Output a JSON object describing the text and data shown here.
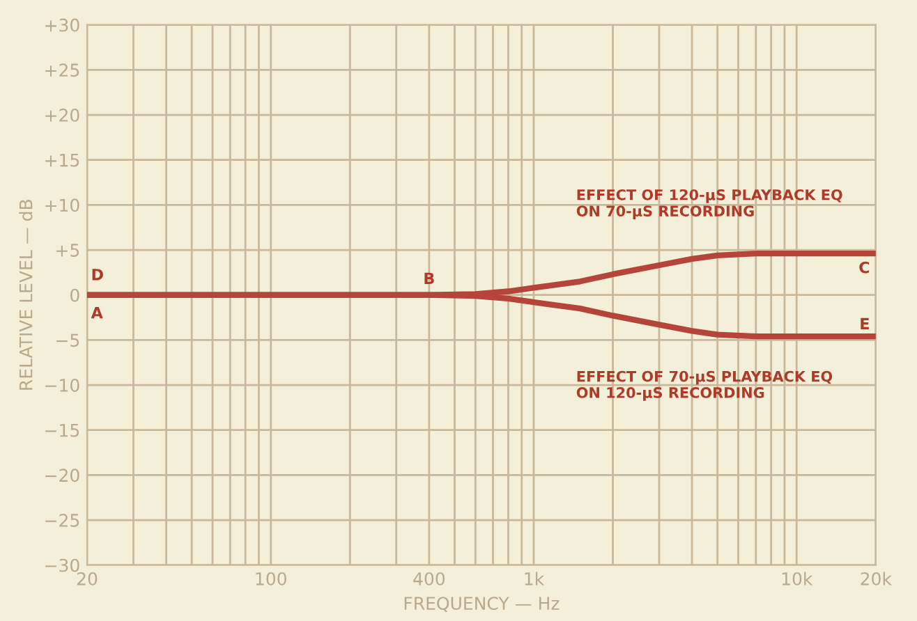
{
  "chart_data": {
    "type": "line",
    "xlabel": "FREQUENCY — Hz",
    "ylabel": "RELATIVE LEVEL — dB",
    "log": "x",
    "x": [
      20,
      100,
      400,
      600,
      800,
      1000,
      1500,
      2000,
      3000,
      4000,
      5000,
      7000,
      10000,
      20000
    ],
    "series": [
      {
        "color": "#b5443a",
        "values": [
          0,
          0,
          0,
          0.1,
          0.4,
          0.8,
          1.5,
          2.3,
          3.3,
          4.0,
          4.4,
          4.6,
          4.6,
          4.6
        ]
      },
      {
        "color": "#b5443a",
        "values": [
          0,
          0,
          0,
          -0.1,
          -0.4,
          -0.8,
          -1.5,
          -2.3,
          -3.3,
          -4.0,
          -4.4,
          -4.6,
          -4.6,
          -4.6
        ]
      }
    ],
    "xlim": [
      20,
      20000
    ],
    "ylim": [
      -30,
      30
    ],
    "xticks": [
      20,
      {
        "value": 30,
        "label": null
      },
      {
        "value": 40,
        "label": null
      },
      {
        "value": 50,
        "label": null
      },
      {
        "value": 60,
        "label": null
      },
      {
        "value": 70,
        "label": null
      },
      {
        "value": 80,
        "label": null
      },
      {
        "value": 90,
        "label": null
      },
      100,
      {
        "value": 200,
        "label": null
      },
      {
        "value": 300,
        "label": null
      },
      400,
      {
        "value": 500,
        "label": null
      },
      {
        "value": 600,
        "label": null
      },
      {
        "value": 700,
        "label": null
      },
      {
        "value": 800,
        "label": null
      },
      {
        "value": 900,
        "label": null
      },
      {
        "value": 1000,
        "label": "1k"
      },
      {
        "value": 2000,
        "label": null
      },
      {
        "value": 3000,
        "label": null
      },
      {
        "value": 4000,
        "label": null
      },
      {
        "value": 5000,
        "label": null
      },
      {
        "value": 6000,
        "label": null
      },
      {
        "value": 7000,
        "label": null
      },
      {
        "value": 8000,
        "label": null
      },
      {
        "value": 9000,
        "label": null
      },
      {
        "value": 10000,
        "label": "10k"
      },
      {
        "value": 20000,
        "label": "20k"
      }
    ],
    "yticks": [
      {
        "value": -30,
        "label": "−30"
      },
      {
        "value": -25,
        "label": "−25"
      },
      {
        "value": -20,
        "label": "−20"
      },
      {
        "value": -15,
        "label": "−15"
      },
      {
        "value": -10,
        "label": "−10"
      },
      {
        "value": -5,
        "label": "−5"
      },
      0,
      {
        "value": 5,
        "label": "+5"
      },
      {
        "value": 10,
        "label": "+10"
      },
      {
        "value": 15,
        "label": "+15"
      },
      {
        "value": 20,
        "label": "+20"
      },
      {
        "value": 25,
        "label": "+25"
      },
      {
        "value": 30,
        "label": "+30"
      }
    ],
    "grid": true,
    "line_style": "solid",
    "marker": "none",
    "annotations": [
      {
        "text": "D",
        "x": 20,
        "y": 0
      },
      {
        "text": "A",
        "x": 20,
        "y": 0
      },
      {
        "text": "B",
        "x": 400,
        "y": 0
      },
      {
        "text": "C",
        "x": 20000,
        "y": 4.6
      },
      {
        "text": "E",
        "x": 20000,
        "y": -4.6
      },
      "EFFECT OF 120-μS PLAYBACK EQ\nON 70-μS RECORDING",
      "EFFECT OF 70-μS PLAYBACK EQ\nON 120-μS RECORDING"
    ]
  }
}
